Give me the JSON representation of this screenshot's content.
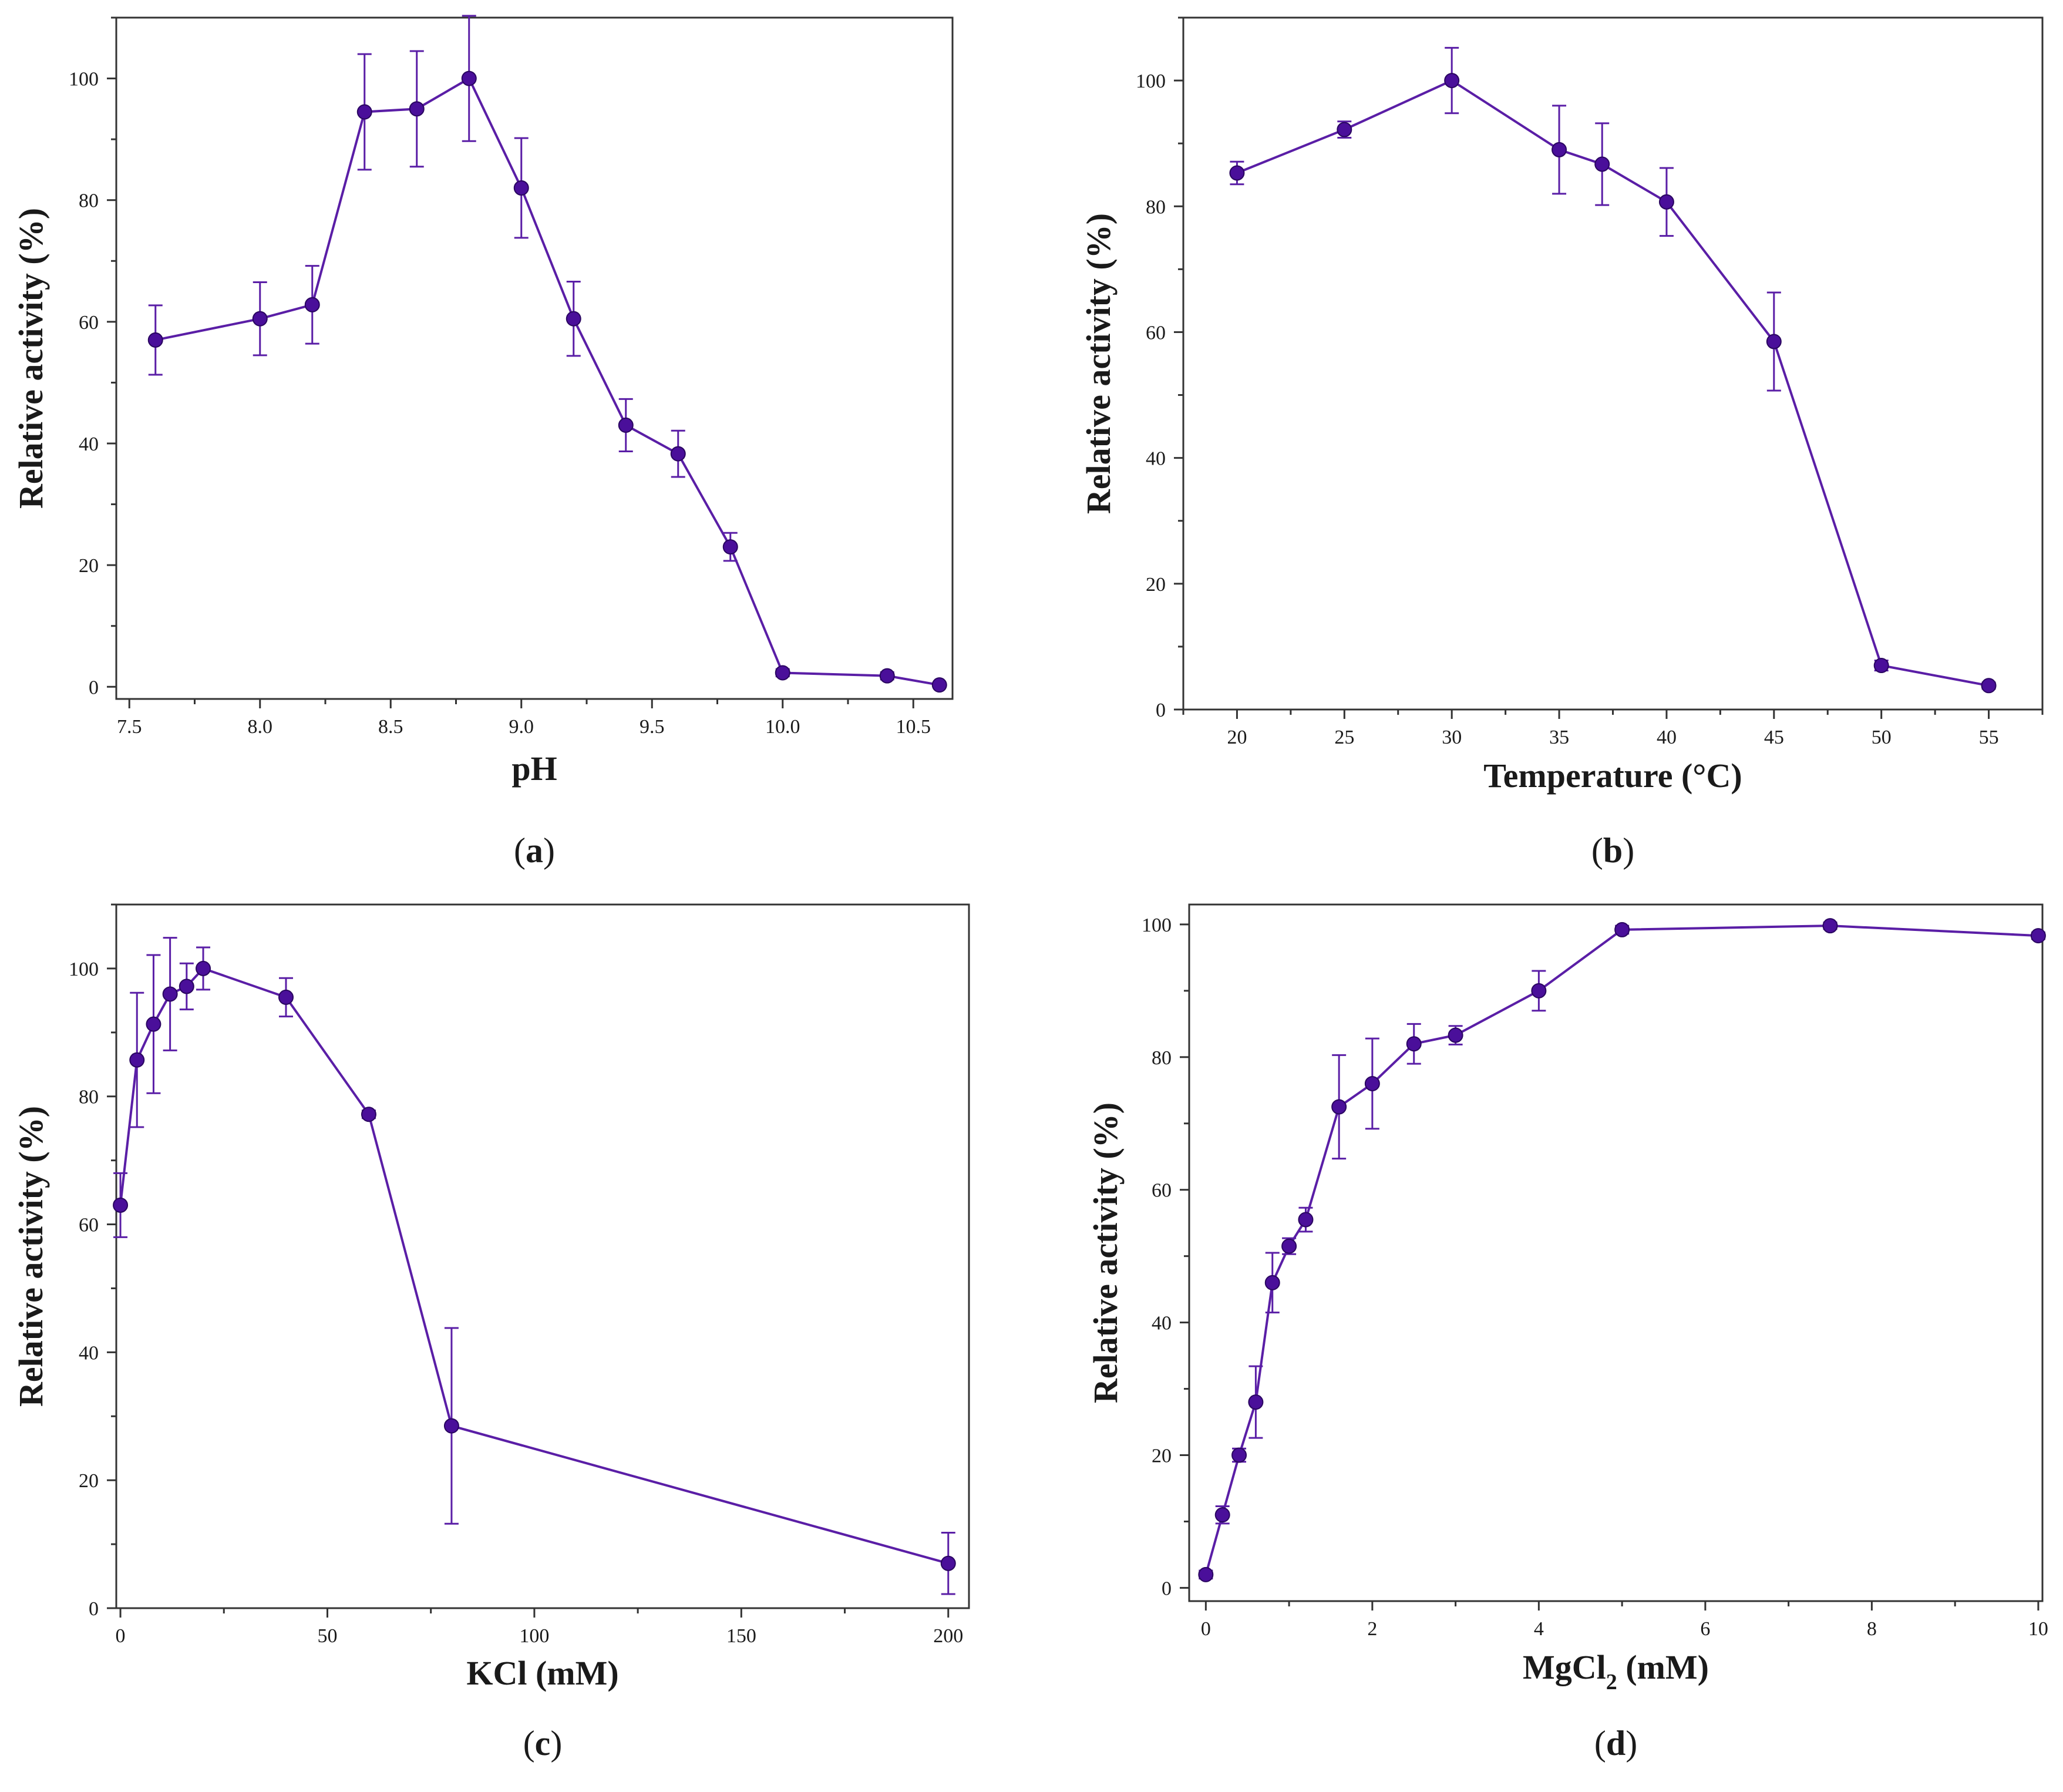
{
  "style": {
    "series_color": "#5a1ea6",
    "marker_color": "#4a0f9a",
    "axis_color": "#333333"
  },
  "chart_data": [
    {
      "type": "line",
      "panel_label": "a",
      "xlabel": "pH",
      "ylabel": "Relative activity (%)",
      "xlim": [
        7.45,
        10.65
      ],
      "ylim": [
        -2,
        110
      ],
      "xticks": [
        7.5,
        8.0,
        8.5,
        9.0,
        9.5,
        10.0,
        10.5
      ],
      "xtick_labels": [
        "7.5",
        "8.0",
        "8.5",
        "9.0",
        "9.5",
        "10.0",
        "10.5"
      ],
      "yticks": [
        0,
        20,
        40,
        60,
        80,
        100
      ],
      "ytick_labels": [
        "0",
        "20",
        "40",
        "60",
        "80",
        "100"
      ],
      "grid": false,
      "legend": "none",
      "series": [
        {
          "x": [
            7.6,
            8.0,
            8.2,
            8.4,
            8.6,
            8.8,
            9.0,
            9.2,
            9.4,
            9.6,
            9.8,
            10.0,
            10.4,
            10.6
          ],
          "y": [
            57,
            60.5,
            62.8,
            94.5,
            95,
            100,
            82,
            60.5,
            43,
            38.3,
            23,
            2.3,
            1.8,
            0.3
          ],
          "err": [
            5.7,
            6,
            6.4,
            9.5,
            9.5,
            10.3,
            8.2,
            6.1,
            4.3,
            3.8,
            2.3,
            0.6,
            0.6,
            0.3
          ]
        }
      ]
    },
    {
      "type": "line",
      "panel_label": "b",
      "xlabel": "Temperature (°C)",
      "ylabel": "Relative activity (%)",
      "xlim": [
        17.5,
        57.5
      ],
      "ylim": [
        0,
        110
      ],
      "xticks": [
        20,
        25,
        30,
        35,
        40,
        45,
        50,
        55
      ],
      "xtick_labels": [
        "20",
        "25",
        "30",
        "35",
        "40",
        "45",
        "50",
        "55"
      ],
      "yticks": [
        0,
        20,
        40,
        60,
        80,
        100
      ],
      "ytick_labels": [
        "0",
        "20",
        "40",
        "60",
        "80",
        "100"
      ],
      "grid": false,
      "legend": "none",
      "series": [
        {
          "x": [
            20,
            25,
            30,
            35,
            37,
            40,
            45,
            50,
            55
          ],
          "y": [
            85.3,
            92.2,
            100,
            89,
            86.7,
            80.7,
            58.5,
            7,
            3.8
          ],
          "err": [
            1.8,
            1.3,
            5.2,
            7,
            6.5,
            5.4,
            7.8,
            0.8,
            0.5
          ]
        }
      ]
    },
    {
      "type": "line",
      "panel_label": "c",
      "xlabel": "KCl (mM)",
      "ylabel": "Relative activity (%)",
      "xlim": [
        -1,
        205
      ],
      "ylim": [
        0,
        110
      ],
      "xticks": [
        0,
        50,
        100,
        150,
        200
      ],
      "xtick_labels": [
        "0",
        "50",
        "100",
        "150",
        "200"
      ],
      "yticks": [
        0,
        20,
        40,
        60,
        80,
        100
      ],
      "ytick_labels": [
        "0",
        "20",
        "40",
        "60",
        "80",
        "100"
      ],
      "grid": false,
      "legend": "none",
      "series": [
        {
          "x": [
            0,
            4,
            8,
            12,
            16,
            20,
            40,
            60,
            80,
            200
          ],
          "y": [
            63,
            85.7,
            91.3,
            96,
            97.2,
            100,
            95.5,
            77.2,
            28.5,
            7
          ],
          "err": [
            5,
            10.5,
            10.8,
            8.8,
            3.6,
            3.3,
            3,
            0.6,
            15.3,
            4.8
          ]
        }
      ]
    },
    {
      "type": "line",
      "panel_label": "d",
      "xlabel": "MgCl",
      "xlabel_sub": "2",
      "xlabel_suffix": " (mM)",
      "ylabel": "Relative activity (%)",
      "xlim": [
        -0.2,
        10.05
      ],
      "ylim": [
        -2,
        103
      ],
      "xticks": [
        0,
        2,
        4,
        6,
        8,
        10
      ],
      "xtick_labels": [
        "0",
        "2",
        "4",
        "6",
        "8",
        "10"
      ],
      "yticks": [
        0,
        20,
        40,
        60,
        80,
        100
      ],
      "ytick_labels": [
        "0",
        "20",
        "40",
        "60",
        "80",
        "100"
      ],
      "grid": false,
      "legend": "none",
      "series": [
        {
          "x": [
            0,
            0.2,
            0.4,
            0.6,
            0.8,
            1.0,
            1.2,
            1.6,
            2.0,
            2.5,
            3.0,
            4.0,
            5.0,
            7.5,
            10.0
          ],
          "y": [
            2,
            11,
            20,
            28,
            46,
            51.5,
            55.5,
            72.5,
            76,
            82,
            83.3,
            90,
            99.2,
            99.8,
            98.3
          ],
          "err": [
            0.6,
            1.3,
            1,
            5.4,
            4.5,
            1.2,
            1.8,
            7.8,
            6.8,
            3,
            1.4,
            3,
            0.6,
            0.5,
            0.5
          ]
        }
      ]
    }
  ]
}
